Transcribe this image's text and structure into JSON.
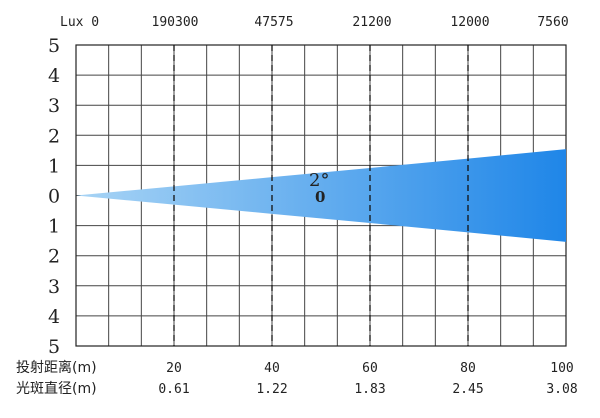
{
  "chart_data": {
    "type": "area",
    "lux_label": "Lux 0",
    "lux_values": [
      "190300",
      "47575",
      "21200",
      "12000",
      "7560"
    ],
    "y_tick_labels": [
      "5",
      "4",
      "3",
      "2",
      "1",
      "0",
      "1",
      "2",
      "3",
      "4",
      "5"
    ],
    "ylim": [
      -5,
      5
    ],
    "xlim": [
      0,
      100
    ],
    "distance_label": "投射距离(m)",
    "distances": [
      "20",
      "40",
      "60",
      "80",
      "100"
    ],
    "diameter_label": "光斑直径(m)",
    "diameters": [
      "0.61",
      "1.22",
      "1.83",
      "2.45",
      "3.08"
    ],
    "beam_angle_label": "2°",
    "beam_marker_label": "0",
    "beam": {
      "x": [
        0,
        20,
        40,
        60,
        80,
        100
      ],
      "half_width": [
        0,
        0.305,
        0.61,
        0.915,
        1.225,
        1.54
      ]
    },
    "grid": true,
    "colors": {
      "beam_light": "#a8d4f5",
      "beam_dark": "#1f86e8",
      "grid": "#444444",
      "dashed": "#111111"
    }
  }
}
